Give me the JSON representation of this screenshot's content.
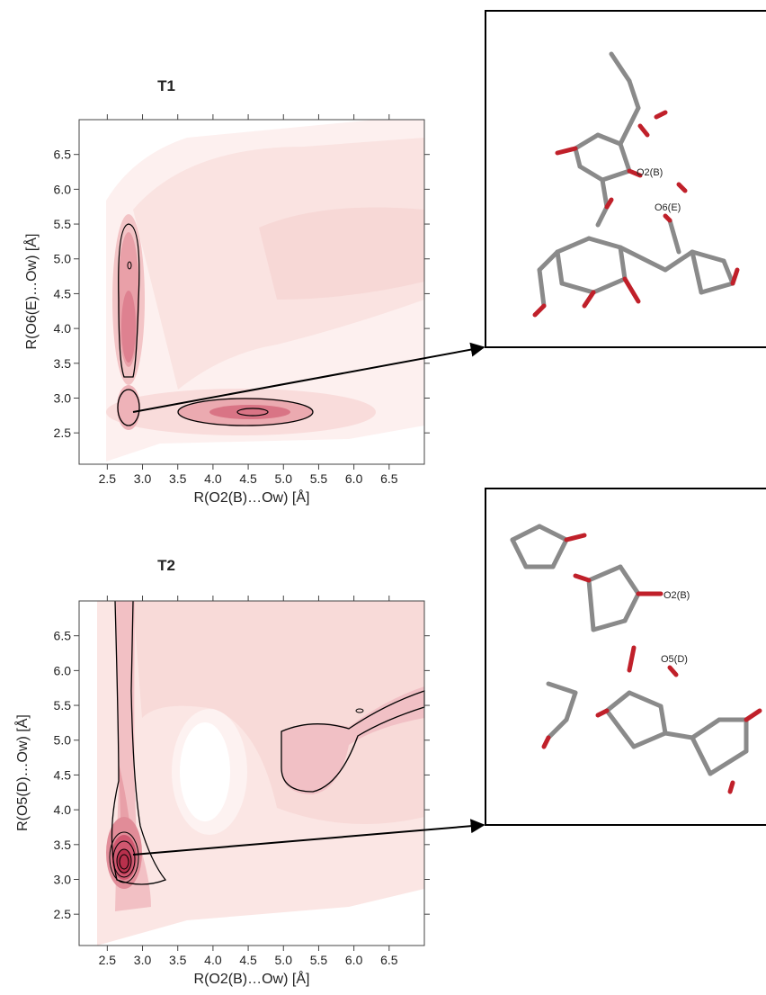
{
  "chart_data": [
    {
      "type": "contour",
      "title": "T1",
      "xlabel": "R(O2(B)…Ow) [Å]",
      "ylabel": "R(O6(E)…Ow) [Å]",
      "xlim": [
        2.1,
        7.0
      ],
      "ylim": [
        2.05,
        7.0
      ],
      "xticks": [
        2.5,
        {
          "value": 3,
          "label": "3.0"
        },
        3.5,
        {
          "value": 4,
          "label": "4.0"
        },
        4.5,
        {
          "value": 5,
          "label": "5.0"
        },
        5.5,
        {
          "value": 6,
          "label": "6.0"
        },
        6.5
      ],
      "yticks": [
        2.5,
        {
          "value": 3,
          "label": "3.0"
        },
        3.5,
        {
          "value": 4,
          "label": "4.0"
        },
        4.5,
        {
          "value": 5,
          "label": "5.0"
        },
        5.5,
        {
          "value": 6,
          "label": "6.0"
        },
        6.5
      ],
      "annotations": [
        "O2(B)",
        "O6(E)"
      ]
    },
    {
      "type": "contour",
      "title": "T2",
      "xlabel": "R(O2(B)…Ow) [Å]",
      "ylabel": "R(O5(D)…Ow) [Å]",
      "xlim": [
        2.1,
        7.0
      ],
      "ylim": [
        2.05,
        7.0
      ],
      "xticks": [
        2.5,
        {
          "value": 3,
          "label": "3.0"
        },
        3.5,
        {
          "value": 4,
          "label": "4.0"
        },
        4.5,
        {
          "value": 5,
          "label": "5.0"
        },
        5.5,
        {
          "value": 6,
          "label": "6.0"
        },
        6.5
      ],
      "yticks": [
        2.5,
        {
          "value": 3,
          "label": "3.0"
        },
        3.5,
        {
          "value": 4,
          "label": "4.0"
        },
        4.5,
        {
          "value": 5,
          "label": "5.0"
        },
        5.5,
        {
          "value": 6,
          "label": "6.0"
        },
        6.5
      ],
      "annotations": [
        "O2(B)",
        "O5(D)"
      ]
    }
  ]
}
